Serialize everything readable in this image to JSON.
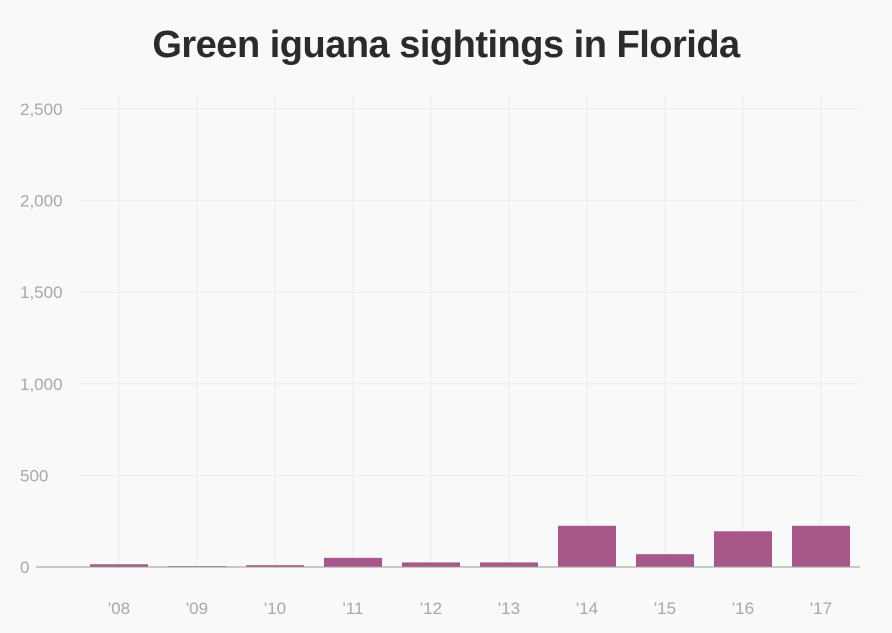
{
  "chart_data": {
    "type": "bar",
    "title": "Green iguana sightings in Florida",
    "categories": [
      "'08",
      "'09",
      "'10",
      "'11",
      "'12",
      "'13",
      "'14",
      "'15",
      "'16",
      "'17"
    ],
    "values": [
      15,
      5,
      10,
      50,
      25,
      25,
      225,
      70,
      195,
      225
    ],
    "yticks": [
      "0",
      "500",
      "1,000",
      "1,500",
      "2,000",
      "2,500"
    ],
    "ylim": [
      0,
      2500
    ],
    "bar_color": "#a8578a",
    "grid": true
  }
}
